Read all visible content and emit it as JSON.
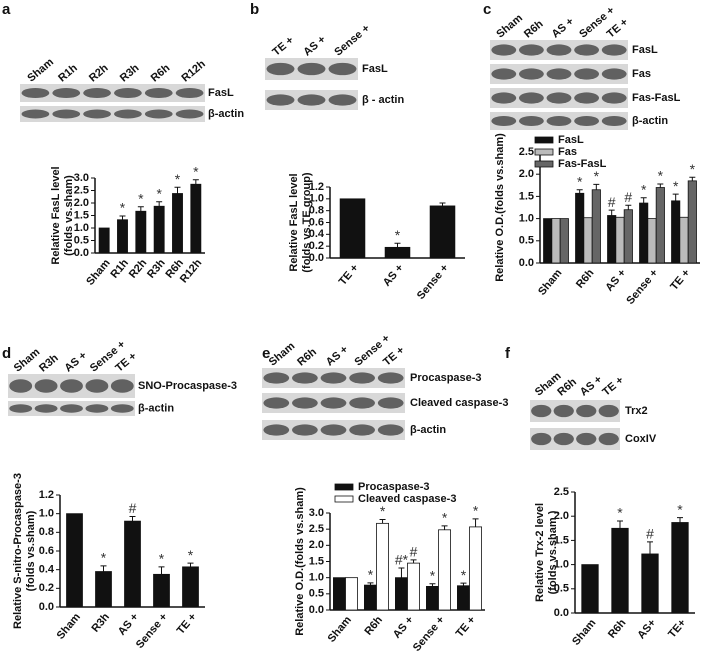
{
  "chart_data": [
    {
      "type": "bar",
      "ylabel": [
        "Relative FasL level",
        "(folds vs.sham)"
      ],
      "categories": [
        "Sham",
        "R1h",
        "R2h",
        "R3h",
        "R6h",
        "R12h"
      ],
      "series": [
        {
          "color": "#111111",
          "values": [
            1.0,
            1.33,
            1.67,
            1.87,
            2.38,
            2.75
          ],
          "errors": [
            null,
            0.15,
            0.18,
            0.18,
            0.25,
            0.18
          ],
          "markers": [
            null,
            "*",
            "*",
            "*",
            "*",
            "*"
          ]
        }
      ],
      "ylim": [
        0,
        3.0
      ],
      "yticks": [
        {
          "value": 0,
          "label": "0.0"
        },
        0.5,
        {
          "value": 1,
          "label": "1.0"
        },
        1.5,
        {
          "value": 2,
          "label": "2.0"
        },
        2.5,
        {
          "value": 3,
          "label": "3.0"
        }
      ]
    },
    {
      "type": "bar",
      "ylabel": [
        "Relative FasL level",
        "(folds vs.TE group)"
      ],
      "categories": [
        "TE +",
        "AS +",
        "Sense +"
      ],
      "series": [
        {
          "color": "#111111",
          "values": [
            1.0,
            0.18,
            0.88
          ],
          "errors": [
            null,
            0.07,
            0.05
          ],
          "markers": [
            null,
            "*",
            null
          ]
        }
      ],
      "ylim": [
        0,
        1.2
      ],
      "yticks": [
        {
          "value": 0,
          "label": "0.0"
        },
        0.2,
        0.4,
        0.6,
        0.8,
        {
          "value": 1,
          "label": "1.0"
        },
        1.2
      ]
    },
    {
      "type": "bar",
      "ylabel": [
        "Relative O.D.(folds vs.sham)"
      ],
      "legend": "top-left",
      "categories": [
        "Sham",
        "R6h",
        "AS +",
        "Sense +",
        "TE +"
      ],
      "series": [
        {
          "name": "FasL",
          "color": "#111111",
          "values": [
            1.0,
            1.57,
            1.07,
            1.35,
            1.4
          ],
          "errors": [
            null,
            0.08,
            0.12,
            0.12,
            0.15
          ],
          "markers": [
            null,
            "*",
            "#",
            "*",
            "*"
          ]
        },
        {
          "name": "Fas",
          "color": "#bbbbbb",
          "values": [
            1.0,
            1.02,
            1.03,
            1.0,
            1.03
          ],
          "errors": [
            null,
            null,
            null,
            null,
            null
          ],
          "markers": [
            null,
            null,
            null,
            null,
            null
          ]
        },
        {
          "name": "Fas-FasL",
          "color": "#666666",
          "values": [
            1.0,
            1.65,
            1.2,
            1.7,
            1.85
          ],
          "errors": [
            null,
            0.12,
            0.1,
            0.08,
            0.08
          ],
          "markers": [
            null,
            "*",
            "#",
            "*",
            "*"
          ]
        }
      ],
      "ylim": [
        0,
        2.5
      ],
      "yticks": [
        {
          "value": 0,
          "label": "0.0"
        },
        0.5,
        {
          "value": 1,
          "label": "1.0"
        },
        1.5,
        {
          "value": 2,
          "label": "2.0"
        },
        2.5
      ]
    },
    {
      "type": "bar",
      "ylabel": [
        "Relative S-nitro-Procaspase-3",
        "(folds vs.sham)"
      ],
      "categories": [
        "Sham",
        "R3h",
        "AS +",
        "Sense +",
        "TE +"
      ],
      "series": [
        {
          "color": "#111111",
          "values": [
            1.0,
            0.38,
            0.92,
            0.35,
            0.43
          ],
          "errors": [
            null,
            0.06,
            0.05,
            0.08,
            0.04
          ],
          "markers": [
            null,
            "*",
            "#",
            "*",
            "*"
          ]
        }
      ],
      "ylim": [
        0,
        1.2
      ],
      "yticks": [
        {
          "value": 0,
          "label": "0.0"
        },
        0.2,
        0.4,
        0.6,
        0.8,
        {
          "value": 1,
          "label": "1.0"
        },
        1.2
      ]
    },
    {
      "type": "bar",
      "ylabel": [
        "Relative O.D.(folds vs.sham)"
      ],
      "legend": "top-left",
      "categories": [
        "Sham",
        "R6h",
        "AS +",
        "Sense +",
        "TE +"
      ],
      "series": [
        {
          "name": "Procaspase-3",
          "color": "#111111",
          "values": [
            1.0,
            0.77,
            1.0,
            0.73,
            0.75
          ],
          "errors": [
            null,
            0.07,
            0.3,
            0.08,
            0.08
          ],
          "markers": [
            null,
            "*",
            "#*",
            "*",
            "*"
          ]
        },
        {
          "name": "Cleaved caspase-3",
          "color": "#ffffff",
          "values": [
            1.0,
            2.68,
            1.45,
            2.48,
            2.57
          ],
          "errors": [
            null,
            0.12,
            0.1,
            0.12,
            0.25
          ],
          "markers": [
            null,
            "*",
            "#",
            "*",
            "*"
          ]
        }
      ],
      "ylim": [
        0,
        3.0
      ],
      "yticks": [
        {
          "value": 0,
          "label": "0.0"
        },
        0.5,
        {
          "value": 1,
          "label": "1.0"
        },
        1.5,
        {
          "value": 2,
          "label": "2.0"
        },
        2.5,
        {
          "value": 3,
          "label": "3.0"
        }
      ]
    },
    {
      "type": "bar",
      "ylabel": [
        "Relative Trx-2 level",
        "(folds vs.sham )"
      ],
      "categories": [
        "Sham",
        "R6h",
        "AS+",
        "TE+"
      ],
      "series": [
        {
          "color": "#111111",
          "values": [
            1.0,
            1.75,
            1.22,
            1.87
          ],
          "errors": [
            null,
            0.15,
            0.25,
            0.1
          ],
          "markers": [
            null,
            "*",
            "#",
            "*"
          ]
        }
      ],
      "ylim": [
        0,
        2.5
      ],
      "yticks": [
        {
          "value": 0,
          "label": "0.0"
        },
        0.5,
        {
          "value": 1,
          "label": "1.0"
        },
        1.5,
        {
          "value": 2,
          "label": "2.0"
        },
        2.5
      ]
    }
  ],
  "blots": [
    {
      "panel": "a",
      "lanes": [
        "Sham",
        "R1h",
        "R2h",
        "R3h",
        "R6h",
        "R12h"
      ],
      "bands": [
        "FasL",
        "β-actin"
      ]
    },
    {
      "panel": "b",
      "lanes": [
        "TE +",
        "AS +",
        "Sense +"
      ],
      "bands": [
        "FasL",
        "β - actin"
      ]
    },
    {
      "panel": "c",
      "lanes": [
        "Sham",
        "R6h",
        "AS +",
        "Sense +",
        "TE +"
      ],
      "bands": [
        "FasL",
        "Fas",
        "Fas-FasL",
        "β-actin"
      ]
    },
    {
      "panel": "d",
      "lanes": [
        "Sham",
        "R3h",
        "AS +",
        "Sense +",
        "TE +"
      ],
      "bands": [
        "SNO-Procaspase-3",
        "β-actin"
      ]
    },
    {
      "panel": "e",
      "lanes": [
        "Sham",
        "R6h",
        "AS +",
        "Sense +",
        "TE +"
      ],
      "bands": [
        "Procaspase-3",
        "Cleaved caspase-3",
        "β-actin"
      ]
    },
    {
      "panel": "f",
      "lanes": [
        "Sham",
        "R6h",
        "AS +",
        "TE +"
      ],
      "bands": [
        "Trx2",
        "CoxIV"
      ]
    }
  ]
}
